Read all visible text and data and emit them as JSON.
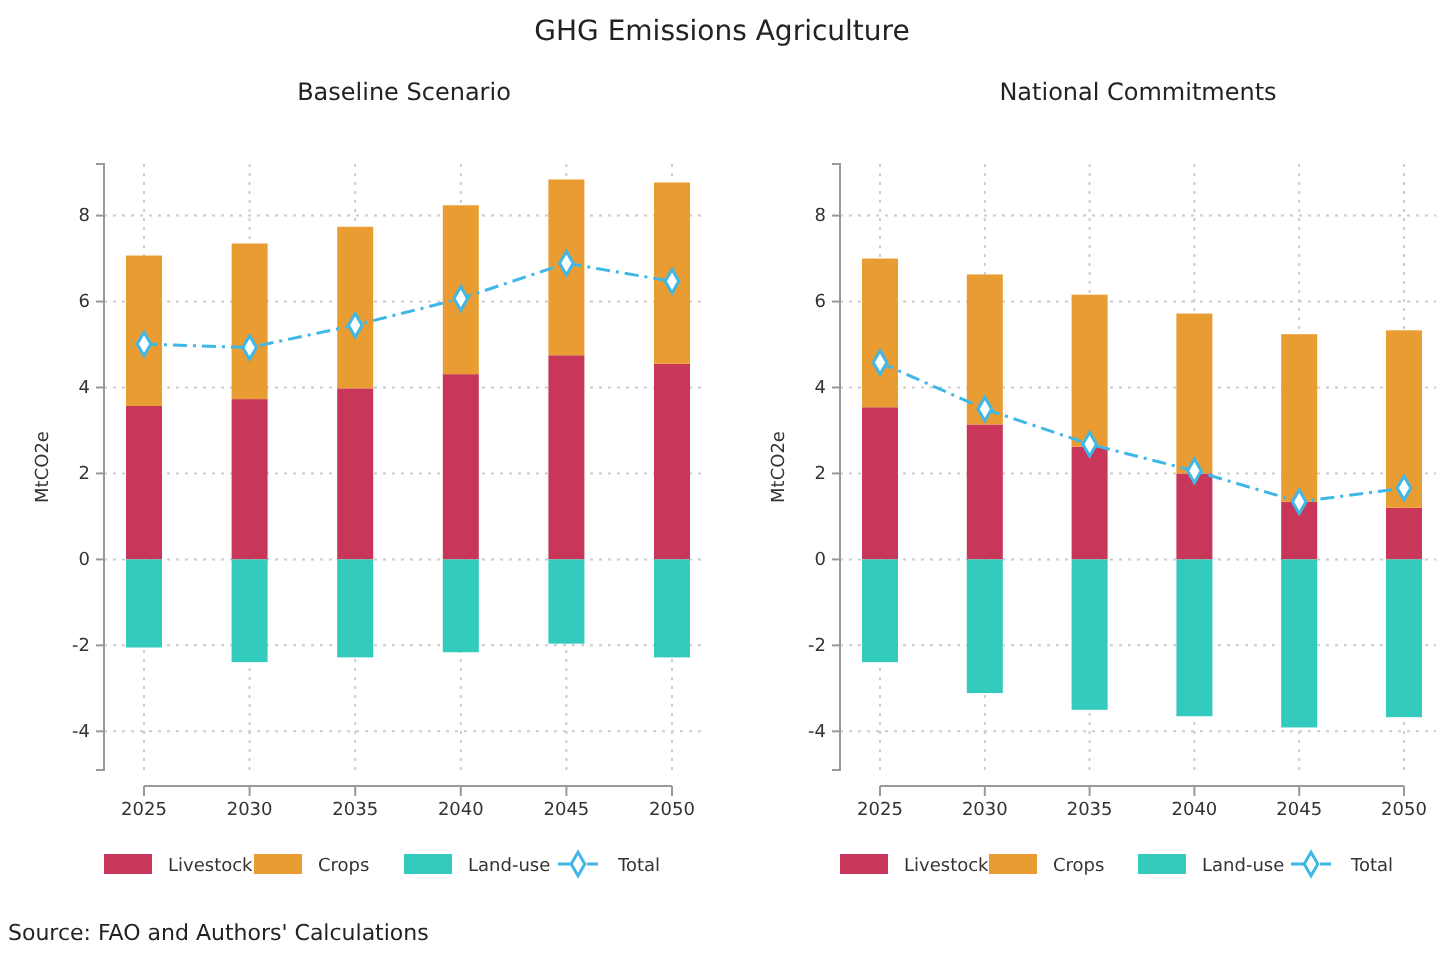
{
  "chart_data": [
    {
      "type": "bar",
      "title": "Baseline Scenario",
      "ylabel": "MtCO2e",
      "annotations": [
        "GHG Emissions Agriculture",
        "Source: FAO and Authors' Calculations"
      ],
      "categories": [
        "2025",
        "2030",
        "2035",
        "2040",
        "2045",
        "2050"
      ],
      "stacked": true,
      "ylim": [
        -4.9,
        9.2
      ],
      "yticks": [
        -4,
        -2,
        0,
        2,
        4,
        6,
        8
      ],
      "grid": true,
      "legend": "bottom",
      "marker": "diamond",
      "line_style": "dashed",
      "series": [
        {
          "name": "Livestock",
          "color": "#c8365a",
          "values": [
            3.57,
            3.73,
            3.98,
            4.31,
            4.75,
            4.55
          ]
        },
        {
          "name": "Crops",
          "color": "#e89c32",
          "values": [
            3.5,
            3.62,
            3.76,
            3.93,
            4.09,
            4.22
          ]
        },
        {
          "name": "Land-use",
          "color": "#33cbbd",
          "values": [
            -2.05,
            -2.39,
            -2.28,
            -2.16,
            -1.96,
            -2.28
          ]
        },
        {
          "name": "Total",
          "type": "line",
          "color": "#3fb8e8",
          "values": [
            5.01,
            4.93,
            5.45,
            6.07,
            6.89,
            6.47
          ]
        }
      ]
    },
    {
      "type": "bar",
      "title": "National Commitments",
      "ylabel": "MtCO2e",
      "categories": [
        "2025",
        "2030",
        "2035",
        "2040",
        "2045",
        "2050"
      ],
      "stacked": true,
      "ylim": [
        -4.9,
        9.2
      ],
      "yticks": [
        -4,
        -2,
        0,
        2,
        4,
        6,
        8
      ],
      "grid": true,
      "legend": "bottom",
      "marker": "diamond",
      "line_style": "dashed",
      "series": [
        {
          "name": "Livestock",
          "color": "#c8365a",
          "values": [
            3.54,
            3.14,
            2.62,
            2.0,
            1.34,
            1.2
          ]
        },
        {
          "name": "Crops",
          "color": "#e89c32",
          "values": [
            3.46,
            3.49,
            3.54,
            3.72,
            3.9,
            4.13
          ]
        },
        {
          "name": "Land-use",
          "color": "#33cbbd",
          "values": [
            -2.39,
            -3.11,
            -3.5,
            -3.65,
            -3.91,
            -3.67
          ]
        },
        {
          "name": "Total",
          "type": "line",
          "color": "#3fb8e8",
          "values": [
            4.58,
            3.5,
            2.68,
            2.06,
            1.34,
            1.66
          ]
        }
      ]
    }
  ]
}
